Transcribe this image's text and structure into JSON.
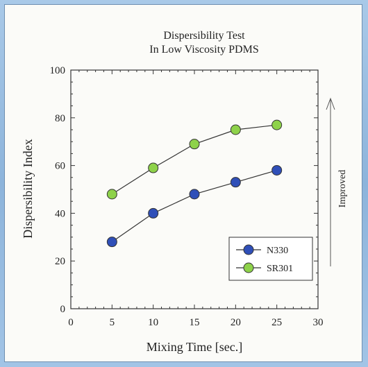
{
  "chart_data": {
    "type": "line",
    "title": "Dispersibility Test",
    "subtitle": "In Low Viscosity PDMS",
    "xlabel": "Mixing Time [sec.]",
    "ylabel": "Dispersibility Index",
    "xlim": [
      0,
      30
    ],
    "ylim": [
      0,
      100
    ],
    "xticks": [
      0,
      5,
      10,
      15,
      20,
      25,
      30
    ],
    "yticks": [
      0,
      20,
      40,
      60,
      80,
      100
    ],
    "x": [
      5,
      10,
      15,
      20,
      25
    ],
    "series": [
      {
        "name": "N330",
        "values": [
          28,
          40,
          48,
          53,
          58
        ],
        "color": "#2f4fb8"
      },
      {
        "name": "SR301",
        "values": [
          48,
          59,
          69,
          75,
          77
        ],
        "color": "#8ed24a"
      }
    ],
    "legend_position": "bottom-right",
    "annotation": "Improved",
    "grid": false
  }
}
